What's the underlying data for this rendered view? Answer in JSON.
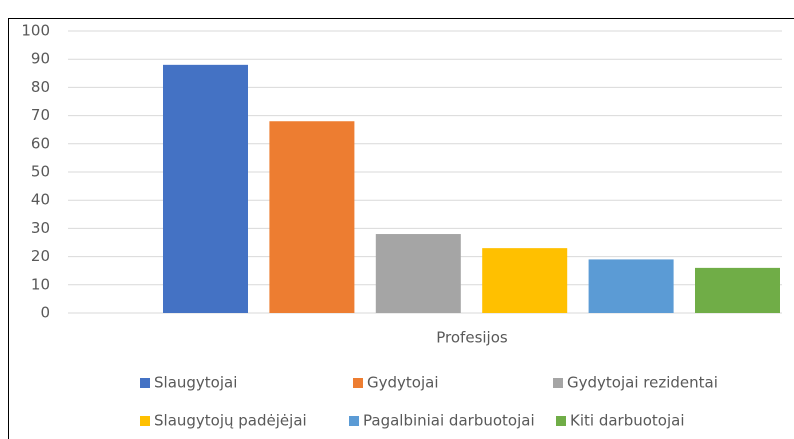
{
  "chart_data": {
    "type": "bar",
    "categories": [
      "Profesijos"
    ],
    "series": [
      {
        "name": "Slaugytojai",
        "color": "#4472c4",
        "values": [
          88
        ]
      },
      {
        "name": "Gydytojai",
        "color": "#ed7d31",
        "values": [
          68
        ]
      },
      {
        "name": "Gydytojai rezidentai",
        "color": "#a5a5a5",
        "values": [
          28
        ]
      },
      {
        "name": "Slaugytojų padėjėjai",
        "color": "#ffc000",
        "values": [
          23
        ]
      },
      {
        "name": "Pagalbiniai darbuotojai",
        "color": "#5b9bd5",
        "values": [
          19
        ]
      },
      {
        "name": "Kiti darbuotojai",
        "color": "#70ad47",
        "values": [
          16
        ]
      }
    ],
    "ylim": [
      0,
      100
    ],
    "yticks": [
      0,
      10,
      20,
      30,
      40,
      50,
      60,
      70,
      80,
      90,
      100
    ],
    "grid": true,
    "legend": "bottom"
  }
}
